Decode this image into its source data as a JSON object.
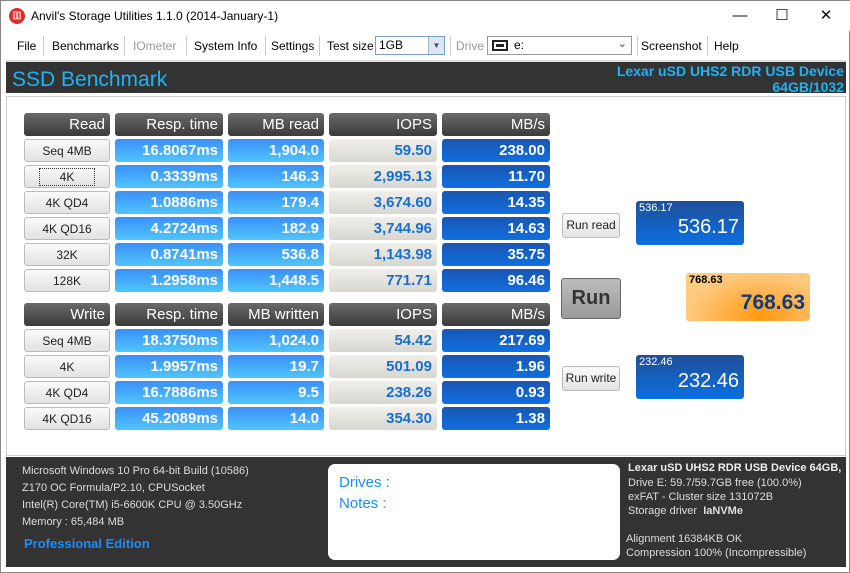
{
  "window": {
    "title": "Anvil's Storage Utilities 1.1.0 (2014-January-1)",
    "minimize": "—",
    "maximize": "☐",
    "close": "✕"
  },
  "toolbar": {
    "file": "File",
    "benchmarks": "Benchmarks",
    "iometer": "IOmeter",
    "system_info": "System Info",
    "settings": "Settings",
    "test_size_label": "Test size",
    "test_size_value": "1GB",
    "drive_label": "Drive",
    "drive_value": "e:",
    "screenshot": "Screenshot",
    "help": "Help"
  },
  "header": {
    "title": "SSD Benchmark",
    "device_line1": "Lexar uSD UHS2 RDR USB Device",
    "device_line2": "64GB/1032"
  },
  "read": {
    "headers": [
      "Read",
      "Resp. time",
      "MB read",
      "IOPS",
      "MB/s"
    ],
    "rows": [
      [
        "Seq 4MB",
        "16.8067ms",
        "1,904.0",
        "59.50",
        "238.00"
      ],
      [
        "4K",
        "0.3339ms",
        "146.3",
        "2,995.13",
        "11.70"
      ],
      [
        "4K QD4",
        "1.0886ms",
        "179.4",
        "3,674.60",
        "14.35"
      ],
      [
        "4K QD16",
        "4.2724ms",
        "182.9",
        "3,744.96",
        "14.63"
      ],
      [
        "32K",
        "0.8741ms",
        "536.8",
        "1,143.98",
        "35.75"
      ],
      [
        "128K",
        "1.2958ms",
        "1,448.5",
        "771.71",
        "96.46"
      ]
    ]
  },
  "write": {
    "headers": [
      "Write",
      "Resp. time",
      "MB written",
      "IOPS",
      "MB/s"
    ],
    "rows": [
      [
        "Seq 4MB",
        "18.3750ms",
        "1,024.0",
        "54.42",
        "217.69"
      ],
      [
        "4K",
        "1.9957ms",
        "19.7",
        "501.09",
        "1.96"
      ],
      [
        "4K QD4",
        "16.7886ms",
        "9.5",
        "238.26",
        "0.93"
      ],
      [
        "4K QD16",
        "45.2089ms",
        "14.0",
        "354.30",
        "1.38"
      ]
    ]
  },
  "controls": {
    "run_read": "Run read",
    "run": "Run",
    "run_write": "Run write"
  },
  "scores": {
    "read_small": "536.17",
    "read": "536.17",
    "total_small": "768.63",
    "total": "768.63",
    "write_small": "232.46",
    "write": "232.46"
  },
  "system": {
    "os": "Microsoft Windows 10 Pro 64-bit Build (10586)",
    "board": "Z170 OC Formula/P2.10, CPUSocket",
    "cpu": "Intel(R) Core(TM) i5-6600K CPU @ 3.50GHz",
    "memory": "Memory : 65,484 MB",
    "edition": "Professional Edition"
  },
  "notes": {
    "drives": "Drives :",
    "notes": "Notes :"
  },
  "drive_info": {
    "name": "Lexar uSD UHS2 RDR USB Device 64GB,",
    "free": "Drive E: 59.7/59.7GB free (100.0%)",
    "fs": "exFAT - Cluster size 131072B",
    "driver_label": "Storage driver",
    "driver": "IaNVMe",
    "alignment": "Alignment 16384KB OK",
    "compression": "Compression 100% (Incompressible)"
  },
  "colors": {
    "header_bg": "#333333",
    "accent": "#1fb2f5",
    "total_score": "#ffb347"
  }
}
